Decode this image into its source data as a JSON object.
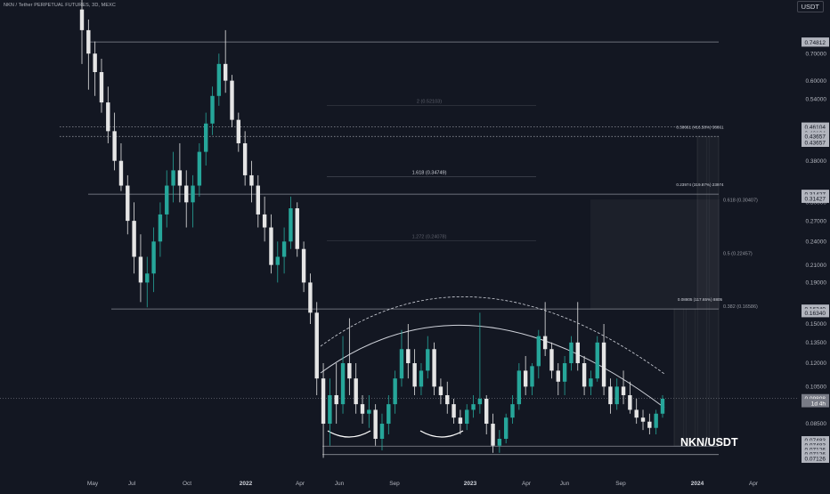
{
  "header": {
    "title": "NKN / Tether PERPETUAL FUTURES, 3D, MEXC",
    "currency": "USDT"
  },
  "watermark": "NKN/USDT",
  "colors": {
    "background": "#131722",
    "up": "#26a69a",
    "down": "#e5e5e5",
    "levels": "#8a8d96",
    "axis_text": "#b2b5be"
  },
  "chart_data": {
    "type": "candlestick",
    "x_axis_labels": [
      "May",
      "Jul",
      "Oct",
      "2022",
      "Apr",
      "Jun",
      "Sep",
      "2023",
      "Apr",
      "Jun",
      "Sep",
      "2024",
      "Apr"
    ],
    "x_axis_bold": [
      "2022",
      "2023",
      "2024"
    ],
    "y_scale": "log",
    "y_range": [
      0.064,
      0.95
    ],
    "y_axis_ticks": [
      "0.70000",
      "0.60000",
      "0.54000",
      "0.38000",
      "0.30000",
      "0.27000",
      "0.24000",
      "0.21000",
      "0.19000",
      "0.15000",
      "0.13500",
      "0.12000",
      "0.10500",
      "0.08500"
    ],
    "price_tags": [
      {
        "label": "0.74812",
        "value": 0.7481,
        "dark": false
      },
      {
        "label": "0.74812",
        "value": 0.745,
        "dark": false
      },
      {
        "label": "0.46104",
        "value": 0.461,
        "dark": false
      },
      {
        "label": "0.46104",
        "value": 0.445,
        "dark": false
      },
      {
        "label": "0.43657",
        "value": 0.4366,
        "dark": false
      },
      {
        "label": "0.43657",
        "value": 0.421,
        "dark": false
      },
      {
        "label": "0.31427",
        "value": 0.3143,
        "dark": false
      },
      {
        "label": "0.31427",
        "value": 0.306,
        "dark": false
      },
      {
        "label": "0.16340",
        "value": 0.1634,
        "dark": false
      },
      {
        "label": "0.16340",
        "value": 0.1595,
        "dark": false
      },
      {
        "label": "0.09808",
        "value": 0.0981,
        "dark": true
      },
      {
        "label": "1d 4h",
        "value": 0.0955,
        "dark": true
      },
      {
        "label": "0.07483",
        "value": 0.0772,
        "dark": false
      },
      {
        "label": "0.07483",
        "value": 0.0752,
        "dark": false
      },
      {
        "label": "0.07126",
        "value": 0.0733,
        "dark": false
      },
      {
        "label": "0.07126",
        "value": 0.0714,
        "dark": false
      },
      {
        "label": "0.07126",
        "value": 0.0696,
        "dark": false
      }
    ],
    "horizontal_levels": [
      {
        "value": 0.7481,
        "from": "Jun 2021",
        "to": "Jan 2024",
        "style": "solid"
      },
      {
        "value": 0.461,
        "from": "Apr 2021",
        "to": "Jan 2024",
        "style": "dotted"
      },
      {
        "value": 0.4366,
        "from": "Apr 2021",
        "to": "Jan 2024",
        "style": "dotted"
      },
      {
        "value": 0.3143,
        "from": "Jun 2021",
        "to": "Jan 2024",
        "style": "solid"
      },
      {
        "value": 0.1634,
        "from": "Jul 2021",
        "to": "Jan 2024",
        "style": "solid"
      },
      {
        "value": 0.0748,
        "from": "May 2022",
        "to": "Jan 2024",
        "style": "solid"
      },
      {
        "value": 0.0713,
        "from": "May 2022",
        "to": "Jan 2024",
        "style": "solid"
      }
    ],
    "fib_extension_labels": [
      {
        "text": "2 (0.52103)",
        "value": 0.521,
        "faded": true
      },
      {
        "text": "1.618 (0.34749)",
        "value": 0.3475,
        "faded": false
      },
      {
        "text": "1.272 (0.24078)",
        "value": 0.2408,
        "faded": true
      }
    ],
    "fib_retracement_labels": [
      {
        "text": "0.618 (0.30407)",
        "value": 0.3041
      },
      {
        "text": "0.5 (0.22457)",
        "value": 0.2246
      },
      {
        "text": "0.382 (0.16586)",
        "value": 0.1659
      }
    ],
    "target_labels": [
      {
        "text": "0.38661 (416.58%) 38661",
        "value": 0.4366
      },
      {
        "text": "0.23974 (319.87%) 23974",
        "value": 0.3143
      },
      {
        "text": "0.08805 (117.65%) 8805",
        "value": 0.1634
      }
    ],
    "annotations": {
      "rounded_top_arc": "curve from Jun 2022 through peak near 0.138 to Nov 2023",
      "rounded_bottom_arcs": 2,
      "pattern": "rounding top / resistance arc"
    },
    "candles_ohlc_3d": [
      [
        0.9,
        0.95,
        0.66,
        0.8
      ],
      [
        0.8,
        0.85,
        0.57,
        0.7
      ],
      [
        0.7,
        0.75,
        0.55,
        0.63
      ],
      [
        0.63,
        0.68,
        0.5,
        0.53
      ],
      [
        0.53,
        0.58,
        0.42,
        0.45
      ],
      [
        0.45,
        0.5,
        0.36,
        0.38
      ],
      [
        0.38,
        0.42,
        0.32,
        0.33
      ],
      [
        0.33,
        0.35,
        0.25,
        0.27
      ],
      [
        0.27,
        0.3,
        0.2,
        0.22
      ],
      [
        0.22,
        0.25,
        0.17,
        0.19
      ],
      [
        0.19,
        0.22,
        0.165,
        0.2
      ],
      [
        0.2,
        0.26,
        0.18,
        0.24
      ],
      [
        0.24,
        0.3,
        0.22,
        0.28
      ],
      [
        0.28,
        0.36,
        0.26,
        0.33
      ],
      [
        0.33,
        0.4,
        0.3,
        0.36
      ],
      [
        0.36,
        0.42,
        0.3,
        0.33
      ],
      [
        0.33,
        0.36,
        0.26,
        0.3
      ],
      [
        0.3,
        0.35,
        0.26,
        0.33
      ],
      [
        0.33,
        0.42,
        0.31,
        0.4
      ],
      [
        0.4,
        0.5,
        0.37,
        0.47
      ],
      [
        0.47,
        0.58,
        0.44,
        0.55
      ],
      [
        0.55,
        0.7,
        0.52,
        0.66
      ],
      [
        0.66,
        0.8,
        0.56,
        0.6
      ],
      [
        0.6,
        0.62,
        0.46,
        0.48
      ],
      [
        0.48,
        0.5,
        0.4,
        0.42
      ],
      [
        0.42,
        0.45,
        0.33,
        0.35
      ],
      [
        0.35,
        0.38,
        0.3,
        0.33
      ],
      [
        0.33,
        0.35,
        0.26,
        0.28
      ],
      [
        0.28,
        0.31,
        0.24,
        0.26
      ],
      [
        0.26,
        0.28,
        0.2,
        0.21
      ],
      [
        0.21,
        0.24,
        0.19,
        0.22
      ],
      [
        0.22,
        0.26,
        0.2,
        0.24
      ],
      [
        0.24,
        0.31,
        0.23,
        0.29
      ],
      [
        0.29,
        0.3,
        0.22,
        0.23
      ],
      [
        0.23,
        0.24,
        0.18,
        0.19
      ],
      [
        0.19,
        0.2,
        0.15,
        0.16
      ],
      [
        0.16,
        0.17,
        0.1,
        0.11
      ],
      [
        0.11,
        0.12,
        0.07,
        0.085
      ],
      [
        0.085,
        0.11,
        0.075,
        0.1
      ],
      [
        0.1,
        0.12,
        0.085,
        0.095
      ],
      [
        0.095,
        0.14,
        0.09,
        0.12
      ],
      [
        0.12,
        0.155,
        0.1,
        0.11
      ],
      [
        0.11,
        0.12,
        0.09,
        0.095
      ],
      [
        0.095,
        0.1,
        0.085,
        0.09
      ],
      [
        0.09,
        0.1,
        0.083,
        0.092
      ],
      [
        0.092,
        0.095,
        0.075,
        0.078
      ],
      [
        0.078,
        0.09,
        0.073,
        0.085
      ],
      [
        0.085,
        0.1,
        0.08,
        0.095
      ],
      [
        0.095,
        0.115,
        0.09,
        0.11
      ],
      [
        0.11,
        0.145,
        0.105,
        0.13
      ],
      [
        0.13,
        0.15,
        0.11,
        0.12
      ],
      [
        0.12,
        0.13,
        0.1,
        0.105
      ],
      [
        0.105,
        0.12,
        0.1,
        0.115
      ],
      [
        0.115,
        0.14,
        0.11,
        0.13
      ],
      [
        0.13,
        0.135,
        0.1,
        0.105
      ],
      [
        0.105,
        0.11,
        0.095,
        0.1
      ],
      [
        0.1,
        0.108,
        0.09,
        0.095
      ],
      [
        0.095,
        0.098,
        0.085,
        0.088
      ],
      [
        0.088,
        0.092,
        0.08,
        0.085
      ],
      [
        0.085,
        0.095,
        0.082,
        0.092
      ],
      [
        0.092,
        0.1,
        0.088,
        0.095
      ],
      [
        0.095,
        0.16,
        0.09,
        0.098
      ],
      [
        0.098,
        0.1,
        0.08,
        0.085
      ],
      [
        0.085,
        0.09,
        0.072,
        0.075
      ],
      [
        0.075,
        0.082,
        0.072,
        0.078
      ],
      [
        0.078,
        0.09,
        0.076,
        0.088
      ],
      [
        0.088,
        0.1,
        0.085,
        0.095
      ],
      [
        0.095,
        0.12,
        0.092,
        0.115
      ],
      [
        0.115,
        0.125,
        0.1,
        0.105
      ],
      [
        0.105,
        0.12,
        0.1,
        0.118
      ],
      [
        0.118,
        0.145,
        0.11,
        0.14
      ],
      [
        0.14,
        0.17,
        0.125,
        0.13
      ],
      [
        0.13,
        0.135,
        0.11,
        0.115
      ],
      [
        0.115,
        0.12,
        0.1,
        0.108
      ],
      [
        0.108,
        0.125,
        0.1,
        0.12
      ],
      [
        0.12,
        0.14,
        0.115,
        0.135
      ],
      [
        0.135,
        0.17,
        0.115,
        0.12
      ],
      [
        0.12,
        0.125,
        0.1,
        0.105
      ],
      [
        0.105,
        0.115,
        0.1,
        0.11
      ],
      [
        0.11,
        0.14,
        0.108,
        0.135
      ],
      [
        0.135,
        0.15,
        0.1,
        0.105
      ],
      [
        0.105,
        0.11,
        0.09,
        0.095
      ],
      [
        0.095,
        0.11,
        0.092,
        0.105
      ],
      [
        0.105,
        0.115,
        0.095,
        0.1
      ],
      [
        0.1,
        0.108,
        0.09,
        0.092
      ],
      [
        0.092,
        0.098,
        0.085,
        0.088
      ],
      [
        0.088,
        0.092,
        0.082,
        0.086
      ],
      [
        0.086,
        0.09,
        0.08,
        0.083
      ],
      [
        0.083,
        0.092,
        0.08,
        0.09
      ],
      [
        0.09,
        0.1,
        0.088,
        0.098
      ]
    ]
  }
}
